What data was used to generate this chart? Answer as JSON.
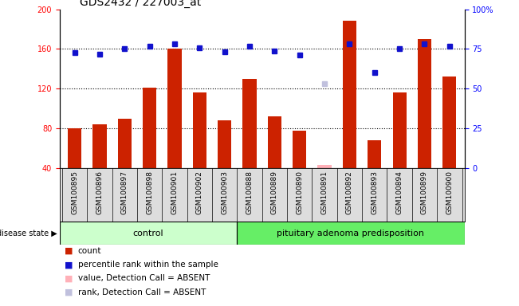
{
  "title": "GDS2432 / 227003_at",
  "samples": [
    "GSM100895",
    "GSM100896",
    "GSM100897",
    "GSM100898",
    "GSM100901",
    "GSM100902",
    "GSM100903",
    "GSM100888",
    "GSM100889",
    "GSM100890",
    "GSM100891",
    "GSM100892",
    "GSM100893",
    "GSM100894",
    "GSM100899",
    "GSM100900"
  ],
  "counts": [
    80,
    84,
    90,
    121,
    160,
    116,
    88,
    130,
    92,
    78,
    43,
    188,
    68,
    116,
    170,
    132
  ],
  "percentile_ranks": [
    156,
    155,
    160,
    163,
    165,
    161,
    157,
    163,
    158,
    154,
    125,
    165,
    136,
    160,
    165,
    163
  ],
  "absent_value_idx": 10,
  "control_count": 7,
  "group_labels": [
    "control",
    "pituitary adenoma predisposition"
  ],
  "bar_color": "#CC2200",
  "dot_color": "#1111CC",
  "absent_bar_color": "#FFB0B8",
  "absent_dot_color": "#C0C0DD",
  "bg_color_control": "#CCFFCC",
  "bg_color_pituitary": "#66EE66",
  "ylim_left": [
    40,
    200
  ],
  "ylim_right": [
    0,
    100
  ],
  "yticks_left": [
    40,
    80,
    120,
    160,
    200
  ],
  "yticks_right": [
    0,
    25,
    50,
    75,
    100
  ],
  "right_tick_labels": [
    "0",
    "25",
    "50",
    "75",
    "100%"
  ],
  "grid_values": [
    80,
    120,
    160
  ],
  "title_fontsize": 10,
  "tick_fontsize": 7,
  "sample_fontsize": 6.5,
  "legend_fontsize": 7.5,
  "group_fontsize": 8
}
